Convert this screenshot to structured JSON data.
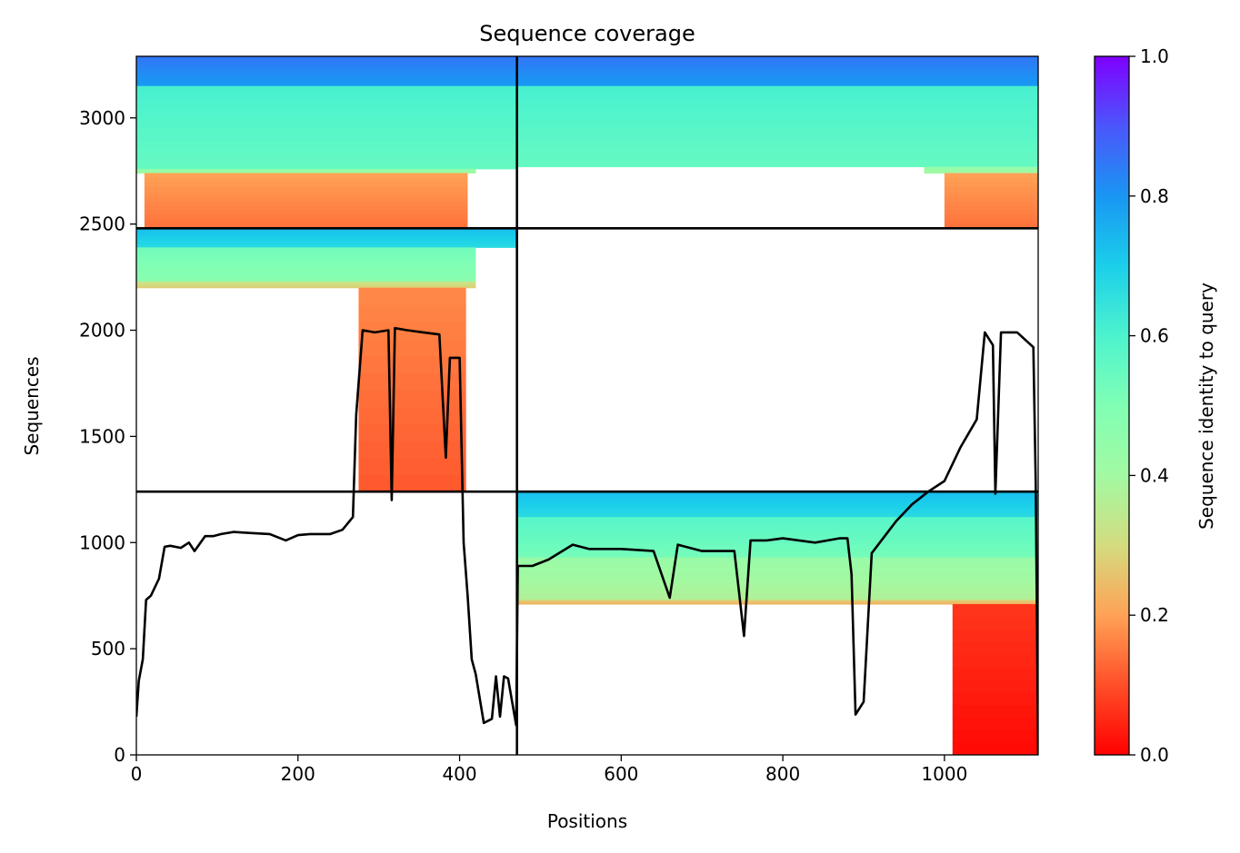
{
  "chart_data": {
    "type": "heatmap",
    "title": "Sequence coverage",
    "xlabel": "Positions",
    "ylabel": "Sequences",
    "xlim": [
      0,
      1116
    ],
    "ylim": [
      0,
      3290
    ],
    "xticks": [
      0,
      200,
      400,
      600,
      800,
      1000
    ],
    "yticks": [
      0,
      500,
      1000,
      1500,
      2000,
      2500,
      3000
    ],
    "grid": false,
    "colorbar": {
      "label": "Sequence identity to query",
      "range": [
        0,
        1
      ],
      "ticks": [
        "0.0",
        "0.2",
        "0.4",
        "0.6",
        "0.8",
        "1.0"
      ],
      "colormap": "rainbow"
    },
    "chain_breaks": {
      "x": [
        471
      ],
      "y": [
        1240,
        2480
      ]
    },
    "blocks": [
      {
        "xr": [
          0,
          471
        ],
        "yr": [
          2480,
          3290
        ],
        "bands": [
          {
            "yr": [
              3150,
              3290
            ],
            "x": [
              0,
              471
            ],
            "id": 0.82
          },
          {
            "yr": [
              2760,
              3150
            ],
            "x": [
              0,
              471
            ],
            "id": 0.58
          },
          {
            "yr": [
              2740,
              2760
            ],
            "x": [
              0,
              420
            ],
            "id": 0.42
          },
          {
            "yr": [
              2480,
              2740
            ],
            "x": [
              10,
              410
            ],
            "id": 0.17
          }
        ]
      },
      {
        "xr": [
          471,
          1116
        ],
        "yr": [
          2480,
          3290
        ],
        "bands": [
          {
            "yr": [
              3150,
              3290
            ],
            "x": [
              471,
              1116
            ],
            "id": 0.82
          },
          {
            "yr": [
              2770,
              3150
            ],
            "x": [
              471,
              1116
            ],
            "id": 0.58
          },
          {
            "yr": [
              2740,
              2770
            ],
            "x": [
              975,
              1116
            ],
            "id": 0.42
          },
          {
            "yr": [
              2480,
              2740
            ],
            "x": [
              1000,
              1116
            ],
            "id": 0.17
          }
        ]
      },
      {
        "xr": [
          0,
          471
        ],
        "yr": [
          1240,
          2480
        ],
        "bands": [
          {
            "yr": [
              2390,
              2480
            ],
            "x": [
              0,
              471
            ],
            "id": 0.7
          },
          {
            "yr": [
              2230,
              2390
            ],
            "x": [
              0,
              420
            ],
            "id": 0.5
          },
          {
            "yr": [
              2200,
              2230
            ],
            "x": [
              0,
              420
            ],
            "id": 0.3
          },
          {
            "yr": [
              1240,
              2200
            ],
            "x": [
              275,
              408
            ],
            "id": 0.14
          }
        ]
      },
      {
        "xr": [
          471,
          1116
        ],
        "yr": [
          0,
          1240
        ],
        "bands": [
          {
            "yr": [
              1120,
              1240
            ],
            "x": [
              471,
              1116
            ],
            "id": 0.7
          },
          {
            "yr": [
              930,
              1120
            ],
            "x": [
              471,
              1116
            ],
            "id": 0.55
          },
          {
            "yr": [
              730,
              930
            ],
            "x": [
              471,
              1116
            ],
            "id": 0.4
          },
          {
            "yr": [
              710,
              730
            ],
            "x": [
              471,
              1116
            ],
            "id": 0.25
          },
          {
            "yr": [
              0,
              710
            ],
            "x": [
              1010,
              1116
            ],
            "id": 0.04
          }
        ]
      }
    ],
    "coverage": {
      "x": [
        0,
        3,
        8,
        12,
        18,
        28,
        35,
        42,
        55,
        65,
        72,
        85,
        95,
        105,
        120,
        140,
        165,
        185,
        200,
        215,
        240,
        255,
        268,
        272,
        280,
        295,
        312,
        316,
        320,
        335,
        355,
        375,
        383,
        388,
        400,
        405,
        410,
        415,
        420,
        430,
        440,
        445,
        450,
        455,
        460,
        470,
        472,
        490,
        510,
        540,
        560,
        600,
        640,
        660,
        670,
        700,
        740,
        752,
        760,
        780,
        800,
        840,
        870,
        880,
        885,
        890,
        900,
        910,
        940,
        960,
        980,
        1000,
        1020,
        1040,
        1050,
        1060,
        1063,
        1070,
        1090,
        1110,
        1113,
        1116
      ],
      "y": [
        180,
        350,
        450,
        730,
        750,
        830,
        980,
        985,
        975,
        1000,
        960,
        1030,
        1030,
        1040,
        1050,
        1045,
        1040,
        1010,
        1035,
        1040,
        1040,
        1060,
        1120,
        1600,
        2000,
        1990,
        2000,
        1200,
        2010,
        2000,
        1990,
        1980,
        1400,
        1870,
        1870,
        1000,
        750,
        450,
        380,
        150,
        170,
        370,
        180,
        370,
        360,
        140,
        890,
        890,
        920,
        990,
        970,
        970,
        960,
        740,
        990,
        960,
        960,
        560,
        1010,
        1010,
        1020,
        1000,
        1020,
        1020,
        850,
        190,
        250,
        950,
        1100,
        1180,
        1240,
        1290,
        1450,
        1580,
        1990,
        1930,
        1230,
        1990,
        1990,
        1920,
        1280,
        0
      ]
    }
  }
}
